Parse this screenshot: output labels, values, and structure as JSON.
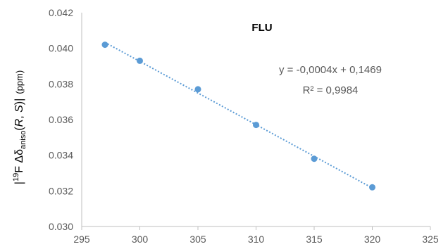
{
  "chart_data": {
    "type": "scatter",
    "title": "FLU",
    "ylabel": {
      "prefix": "|",
      "sup": "19",
      "mid": "F Δδ",
      "sub": "aniso",
      "italic_open": "(",
      "R": "R",
      "comma": ", ",
      "S": "S",
      "close": ")|",
      "unit": "(ppm)"
    },
    "xlabel": "",
    "xlim": [
      295,
      325
    ],
    "ylim": [
      0.03,
      0.042
    ],
    "xticks": [
      "295",
      "300",
      "305",
      "310",
      "315",
      "320",
      "325"
    ],
    "yticks": [
      "0.030",
      "0.032",
      "0.034",
      "0.036",
      "0.038",
      "0.040",
      "0.042"
    ],
    "series": [
      {
        "values": [
          {
            "x": 297,
            "y": 0.0402
          },
          {
            "x": 300,
            "y": 0.0393
          },
          {
            "x": 305,
            "y": 0.0377
          },
          {
            "x": 310,
            "y": 0.0357
          },
          {
            "x": 315,
            "y": 0.0338
          },
          {
            "x": 320,
            "y": 0.0322
          }
        ]
      }
    ],
    "trendline": {
      "style": "dotted",
      "x_range": [
        297,
        320
      ],
      "equation": "y = -0,0004x + 0,1469",
      "r_squared": "R² = 0,9984"
    },
    "grid": false,
    "legend": "none",
    "colors": {
      "marker": "#5b9bd5",
      "trendline": "#5b9bd5",
      "axis": "#bfbfbf",
      "tick_text": "#595959"
    }
  }
}
